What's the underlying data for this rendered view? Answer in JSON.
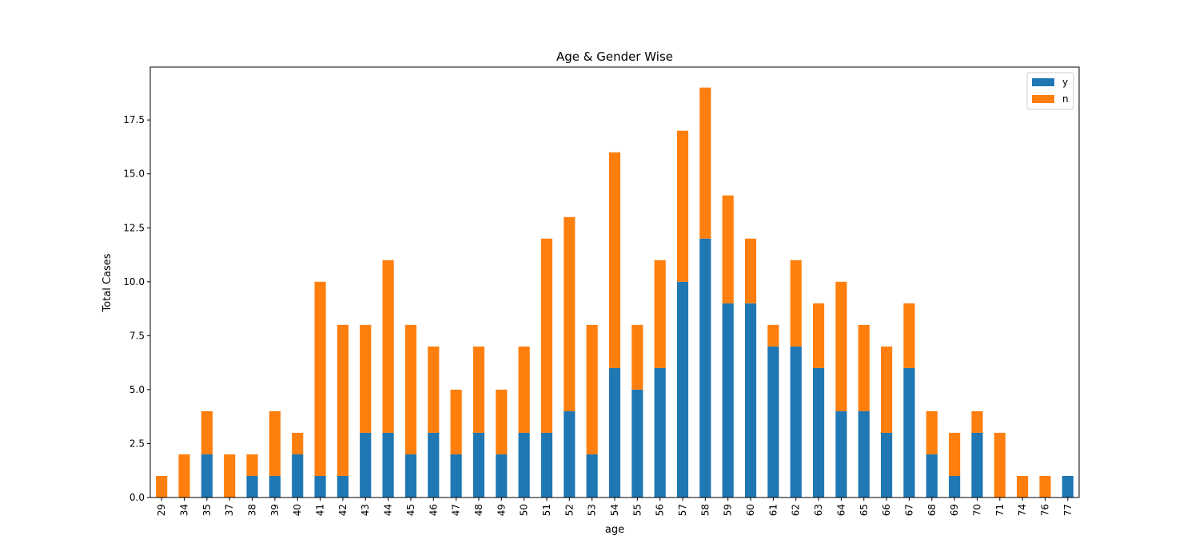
{
  "chart_data": {
    "type": "bar",
    "stacked": true,
    "title": "Age & Gender Wise",
    "xlabel": "age",
    "ylabel": "Total Cases",
    "categories": [
      "29",
      "34",
      "35",
      "37",
      "38",
      "39",
      "40",
      "41",
      "42",
      "43",
      "44",
      "45",
      "46",
      "47",
      "48",
      "49",
      "50",
      "51",
      "52",
      "53",
      "54",
      "55",
      "56",
      "57",
      "58",
      "59",
      "60",
      "61",
      "62",
      "63",
      "64",
      "65",
      "66",
      "67",
      "68",
      "69",
      "70",
      "71",
      "74",
      "76",
      "77"
    ],
    "series": [
      {
        "name": "y",
        "color": "#1f77b4",
        "values": [
          0,
          0,
          2,
          0,
          1,
          1,
          2,
          1,
          1,
          3,
          3,
          2,
          3,
          2,
          3,
          2,
          3,
          3,
          4,
          2,
          6,
          5,
          6,
          10,
          12,
          9,
          9,
          7,
          7,
          6,
          4,
          4,
          3,
          6,
          2,
          1,
          3,
          0,
          0,
          0,
          1
        ]
      },
      {
        "name": "n",
        "color": "#ff7f0e",
        "values": [
          1,
          2,
          2,
          2,
          1,
          3,
          1,
          9,
          7,
          5,
          8,
          6,
          4,
          3,
          4,
          3,
          4,
          9,
          9,
          6,
          10,
          3,
          5,
          7,
          7,
          5,
          3,
          1,
          4,
          3,
          6,
          4,
          4,
          3,
          2,
          2,
          1,
          3,
          1,
          1,
          0
        ]
      }
    ],
    "ylim": [
      0,
      19.95
    ],
    "yticks": [
      "0.0",
      "2.5",
      "5.0",
      "7.5",
      "10.0",
      "12.5",
      "15.0",
      "17.5"
    ],
    "legend_position": "top-right",
    "grid": false
  }
}
